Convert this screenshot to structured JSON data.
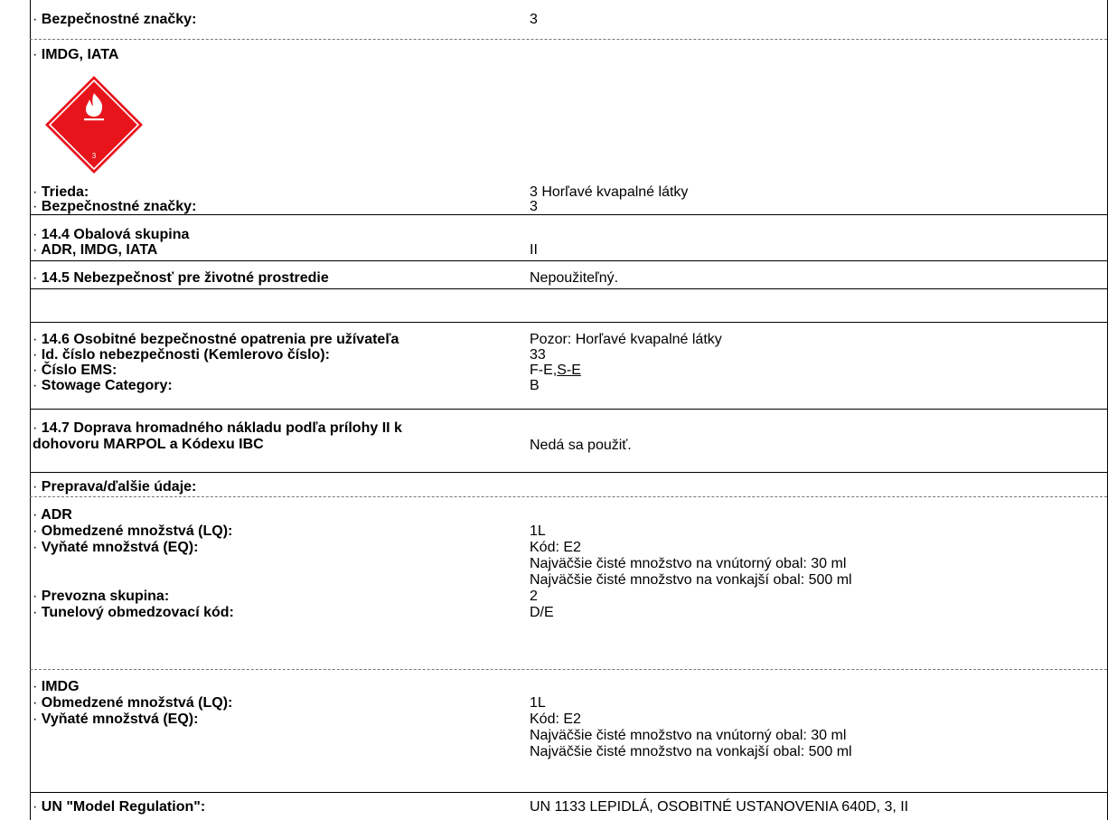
{
  "bullet": "·",
  "rows": {
    "r1": {
      "label": "Bezpečnostné značky:",
      "value": "3"
    },
    "r2": {
      "label": "IMDG, IATA"
    },
    "r3": {
      "label": "Trieda:",
      "value": "3 Horľavé kvapalné látky"
    },
    "r4": {
      "label": "Bezpečnostné značky:",
      "value": "3"
    },
    "r5": {
      "label": "14.4 Obalová skupina"
    },
    "r6": {
      "label": "ADR, IMDG, IATA",
      "value": "II"
    },
    "r7": {
      "label": "14.5 Nebezpečnosť pre životné prostredie",
      "value": "Nepoužiteľný."
    },
    "r8": {
      "label": "14.6 Osobitné bezpečnostné opatrenia pre užívateľa",
      "value": "Pozor: Horľavé kvapalné látky"
    },
    "r9": {
      "label": "Id. číslo nebezpečnosti (Kemlerovo číslo):",
      "value": "33"
    },
    "r10": {
      "label": "Číslo EMS:",
      "value_a": "F-E,",
      "value_b": "S-E"
    },
    "r11": {
      "label": "Stowage Category:",
      "value": "B"
    },
    "r12": {
      "label_1": "14.7 Doprava hromadného nákladu podľa prílohy II k",
      "label_2": "dohovoru MARPOL a Kódexu IBC",
      "value": "Nedá sa použiť."
    },
    "r13": {
      "label": "Preprava/ďalšie údaje:"
    },
    "r14": {
      "label": "ADR"
    },
    "r15": {
      "label": "Obmedzené množstvá (LQ):",
      "value": "1L"
    },
    "r16": {
      "label": "Vyňaté množstvá (EQ):",
      "value": "Kód: E2",
      "value_2": "Najväčšie čisté množstvo na vnútorný obal: 30 ml",
      "value_3": "Najväčšie čisté množstvo na vonkajší obal: 500 ml"
    },
    "r17": {
      "label": "Prevozna skupina:",
      "value": "2"
    },
    "r18": {
      "label": "Tunelový obmedzovací kód:",
      "value": "D/E"
    },
    "r19": {
      "label": "IMDG"
    },
    "r20": {
      "label": "Obmedzené množstvá (LQ):",
      "value": "1L"
    },
    "r21": {
      "label": "Vyňaté množstvá (EQ):",
      "value": "Kód: E2",
      "value_2": "Najväčšie čisté množstvo na vnútorný obal: 30 ml",
      "value_3": "Najväčšie čisté množstvo na vonkajší obal: 500 ml"
    },
    "r22": {
      "label": "UN \"Model Regulation\":",
      "value": "UN 1133 LEPIDLÁ, OSOBITNÉ USTANOVENIA 640D, 3, II"
    }
  },
  "placard": {
    "class_number": "3",
    "color": "#e8141c",
    "icon": "flame-icon"
  }
}
